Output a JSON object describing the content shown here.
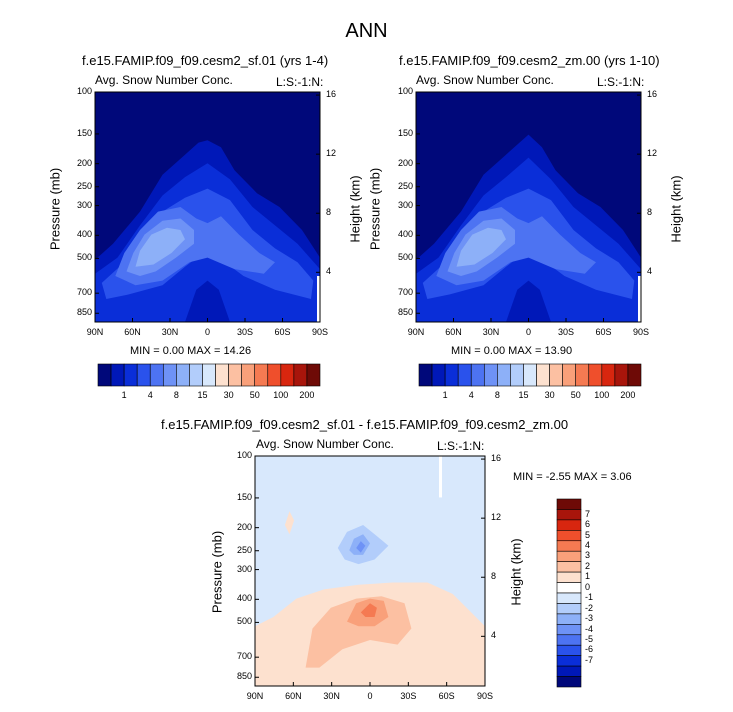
{
  "figure_title": "ANN",
  "colors": {
    "seq_scale": [
      "#00087a",
      "#0018b8",
      "#0a2ed8",
      "#2a52ec",
      "#4d73f2",
      "#6e92f6",
      "#8db0f8",
      "#b2cdfb",
      "#d8e8fc",
      "#fde1cf",
      "#fcc0a2",
      "#f9a07a",
      "#f57a52",
      "#ef4f2c",
      "#d8260f",
      "#a8150b",
      "#6e0a06"
    ],
    "diff_scale": [
      "#00087a",
      "#0018b8",
      "#0a2ed8",
      "#2a52ec",
      "#4d73f2",
      "#6e92f6",
      "#8db0f8",
      "#b2cdfb",
      "#d8e8fc",
      "#ffffff",
      "#fde1cf",
      "#fcc0a2",
      "#f9a07a",
      "#f57a52",
      "#ef4f2c",
      "#d8260f",
      "#a8150b",
      "#6e0a06"
    ]
  },
  "plots": {
    "left": {
      "title": "f.e15.FAMIP.f09_f09.cesm2_sf.01 (yrs 1-4)",
      "var_label": "Avg. Snow Number Conc.",
      "corner_label": "L:S:-1:N:",
      "min_max": "MIN =  0.00  MAX = 14.26"
    },
    "right": {
      "title": "f.e15.FAMIP.f09_f09.cesm2_zm.00 (yrs 1-10)",
      "var_label": "Avg. Snow Number Conc.",
      "corner_label": "L:S:-1:N:",
      "min_max": "MIN =  0.00  MAX = 13.90"
    },
    "diff": {
      "title": "f.e15.FAMIP.f09_f09.cesm2_sf.01 - f.e15.FAMIP.f09_f09.cesm2_zm.00",
      "var_label": "Avg. Snow Number Conc.",
      "corner_label": "L:S:-1:N:",
      "min_max": "MIN =  -2.55  MAX =   3.06"
    }
  },
  "chart_data": [
    {
      "type": "heatmap",
      "id": "left",
      "title": "f.e15.FAMIP.f09_f09.cesm2_sf.01 (yrs 1-4)",
      "xlabel": "",
      "ylabel": "Pressure (mb)",
      "y2label": "Height (km)",
      "x_ticks": [
        "90N",
        "60N",
        "30N",
        "0",
        "30S",
        "60S",
        "90S"
      ],
      "y_ticks": [
        "100",
        "150",
        "200",
        "250",
        "300",
        "400",
        "500",
        "700",
        "850"
      ],
      "y2_ticks": [
        "16",
        "12",
        "8",
        "4"
      ],
      "min": 0.0,
      "max": 14.26,
      "levels": [
        1,
        4,
        8,
        15,
        30,
        50,
        100,
        200
      ]
    },
    {
      "type": "heatmap",
      "id": "right",
      "title": "f.e15.FAMIP.f09_f09.cesm2_zm.00 (yrs 1-10)",
      "xlabel": "",
      "ylabel": "Pressure (mb)",
      "y2label": "Height (km)",
      "x_ticks": [
        "90N",
        "60N",
        "30N",
        "0",
        "30S",
        "60S",
        "90S"
      ],
      "y_ticks": [
        "100",
        "150",
        "200",
        "250",
        "300",
        "400",
        "500",
        "700",
        "850"
      ],
      "y2_ticks": [
        "16",
        "12",
        "8",
        "4"
      ],
      "min": 0.0,
      "max": 13.9,
      "levels": [
        1,
        4,
        8,
        15,
        30,
        50,
        100,
        200
      ]
    },
    {
      "type": "heatmap",
      "id": "diff",
      "title": "f.e15.FAMIP.f09_f09.cesm2_sf.01 - f.e15.FAMIP.f09_f09.cesm2_zm.00",
      "xlabel": "",
      "ylabel": "Pressure (mb)",
      "y2label": "Height (km)",
      "x_ticks": [
        "90N",
        "60N",
        "30N",
        "0",
        "30S",
        "60S",
        "90S"
      ],
      "y_ticks": [
        "100",
        "150",
        "200",
        "250",
        "300",
        "400",
        "500",
        "700",
        "850"
      ],
      "y2_ticks": [
        "16",
        "12",
        "8",
        "4"
      ],
      "min": -2.55,
      "max": 3.06,
      "levels": [
        -7,
        -6,
        -5,
        -4,
        -3,
        -2,
        -1,
        0,
        1,
        2,
        3,
        4,
        5,
        6,
        7
      ]
    }
  ]
}
